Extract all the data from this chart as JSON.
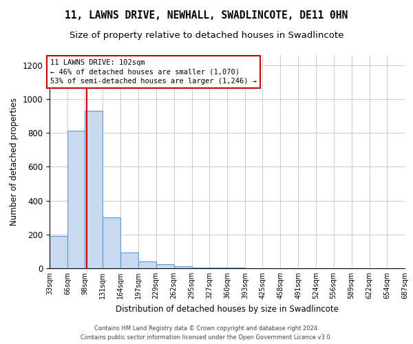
{
  "title": "11, LAWNS DRIVE, NEWHALL, SWADLINCOTE, DE11 0HN",
  "subtitle": "Size of property relative to detached houses in Swadlincote",
  "xlabel": "Distribution of detached houses by size in Swadlincote",
  "ylabel": "Number of detached properties",
  "footer_line1": "Contains HM Land Registry data © Crown copyright and database right 2024.",
  "footer_line2": "Contains public sector information licensed under the Open Government Licence v3.0.",
  "annotation_line1": "11 LAWNS DRIVE: 102sqm",
  "annotation_line2": "← 46% of detached houses are smaller (1,070)",
  "annotation_line3": "53% of semi-detached houses are larger (1,246) →",
  "bar_color": "#c9d9f0",
  "bar_edge_color": "#5b9bd5",
  "vline_color": "#cc0000",
  "vline_x": 102,
  "bin_edges": [
    33,
    66,
    98,
    131,
    164,
    197,
    229,
    262,
    295,
    327,
    360,
    393,
    425,
    458,
    491,
    524,
    556,
    589,
    622,
    654,
    687
  ],
  "bar_heights": [
    193,
    812,
    930,
    300,
    93,
    40,
    23,
    12,
    5,
    3,
    3,
    2,
    2,
    1,
    1,
    1,
    0,
    0,
    1,
    0
  ],
  "ylim": [
    0,
    1260
  ],
  "yticks": [
    0,
    200,
    400,
    600,
    800,
    1000,
    1200
  ],
  "background_color": "#ffffff",
  "grid_color": "#cccccc",
  "title_fontsize": 10.5,
  "subtitle_fontsize": 9.5,
  "ylabel_fontsize": 8.5,
  "xlabel_fontsize": 8.5,
  "ytick_fontsize": 8.5,
  "xtick_fontsize": 7,
  "footer_fontsize": 6,
  "ann_fontsize": 7.5
}
